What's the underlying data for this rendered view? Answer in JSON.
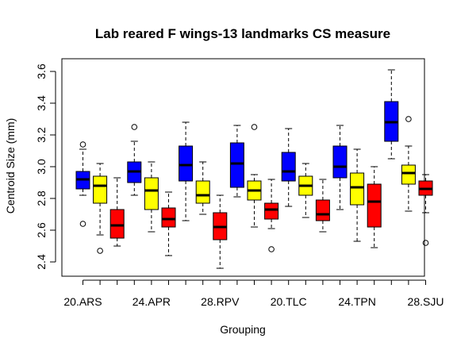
{
  "chart_data": {
    "type": "boxplot",
    "title": "Lab reared F wings-13 landmarks CS measure",
    "xlabel": "Grouping",
    "ylabel": "Centroid Size (mm)",
    "ylim": [
      2.3,
      3.7
    ],
    "yticks": [
      2.4,
      2.6,
      2.8,
      3.0,
      3.2,
      3.4,
      3.6
    ],
    "ytick_labels": [
      "2.4",
      "2.6",
      "2.8",
      "3.0",
      "3.2",
      "3.4",
      "3.6"
    ],
    "xtick_labels": [
      "20.ARS",
      "24.APR",
      "28.RPV",
      "20.TLC",
      "24.TPN",
      "28.SJU"
    ],
    "grid": false,
    "colors": {
      "blue": "#0000ff",
      "yellow": "#ffff00",
      "red": "#ff0000"
    },
    "boxes": [
      {
        "color": "blue",
        "min": 2.82,
        "q1": 2.86,
        "median": 2.92,
        "q3": 2.97,
        "max": 3.11,
        "outliers": [
          3.14,
          2.64
        ]
      },
      {
        "color": "yellow",
        "min": 2.57,
        "q1": 2.77,
        "median": 2.88,
        "q3": 2.94,
        "max": 3.02,
        "outliers": [
          2.47
        ]
      },
      {
        "color": "red",
        "min": 2.5,
        "q1": 2.55,
        "median": 2.63,
        "q3": 2.73,
        "max": 2.93,
        "outliers": []
      },
      {
        "color": "blue",
        "min": 2.82,
        "q1": 2.9,
        "median": 2.97,
        "q3": 3.03,
        "max": 3.16,
        "outliers": [
          3.25
        ]
      },
      {
        "color": "yellow",
        "min": 2.59,
        "q1": 2.73,
        "median": 2.85,
        "q3": 2.93,
        "max": 3.03,
        "outliers": []
      },
      {
        "color": "red",
        "min": 2.44,
        "q1": 2.62,
        "median": 2.67,
        "q3": 2.74,
        "max": 2.84,
        "outliers": []
      },
      {
        "color": "blue",
        "min": 2.66,
        "q1": 2.91,
        "median": 3.01,
        "q3": 3.13,
        "max": 3.28,
        "outliers": []
      },
      {
        "color": "yellow",
        "min": 2.7,
        "q1": 2.77,
        "median": 2.82,
        "q3": 2.91,
        "max": 3.03,
        "outliers": []
      },
      {
        "color": "red",
        "min": 2.36,
        "q1": 2.54,
        "median": 2.62,
        "q3": 2.71,
        "max": 2.82,
        "outliers": []
      },
      {
        "color": "blue",
        "min": 2.81,
        "q1": 2.87,
        "median": 3.02,
        "q3": 3.15,
        "max": 3.26,
        "outliers": []
      },
      {
        "color": "yellow",
        "min": 2.62,
        "q1": 2.79,
        "median": 2.85,
        "q3": 2.91,
        "max": 2.95,
        "outliers": [
          3.25
        ]
      },
      {
        "color": "red",
        "min": 2.61,
        "q1": 2.67,
        "median": 2.73,
        "q3": 2.77,
        "max": 2.92,
        "outliers": [
          2.48
        ]
      },
      {
        "color": "blue",
        "min": 2.75,
        "q1": 2.91,
        "median": 2.97,
        "q3": 3.09,
        "max": 3.24,
        "outliers": []
      },
      {
        "color": "yellow",
        "min": 2.68,
        "q1": 2.82,
        "median": 2.88,
        "q3": 2.94,
        "max": 3.02,
        "outliers": []
      },
      {
        "color": "red",
        "min": 2.59,
        "q1": 2.66,
        "median": 2.7,
        "q3": 2.79,
        "max": 2.92,
        "outliers": []
      },
      {
        "color": "blue",
        "min": 2.73,
        "q1": 2.93,
        "median": 3.0,
        "q3": 3.13,
        "max": 3.26,
        "outliers": []
      },
      {
        "color": "yellow",
        "min": 2.53,
        "q1": 2.76,
        "median": 2.87,
        "q3": 2.96,
        "max": 3.11,
        "outliers": []
      },
      {
        "color": "red",
        "min": 2.49,
        "q1": 2.62,
        "median": 2.78,
        "q3": 2.89,
        "max": 3.0,
        "outliers": []
      },
      {
        "color": "blue",
        "min": 3.05,
        "q1": 3.16,
        "median": 3.28,
        "q3": 3.41,
        "max": 3.61,
        "outliers": []
      },
      {
        "color": "yellow",
        "min": 2.72,
        "q1": 2.89,
        "median": 2.96,
        "q3": 3.01,
        "max": 3.13,
        "outliers": [
          3.3
        ]
      },
      {
        "color": "red",
        "min": 2.71,
        "q1": 2.82,
        "median": 2.86,
        "q3": 2.91,
        "max": 2.95,
        "outliers": [
          2.52
        ]
      }
    ]
  }
}
